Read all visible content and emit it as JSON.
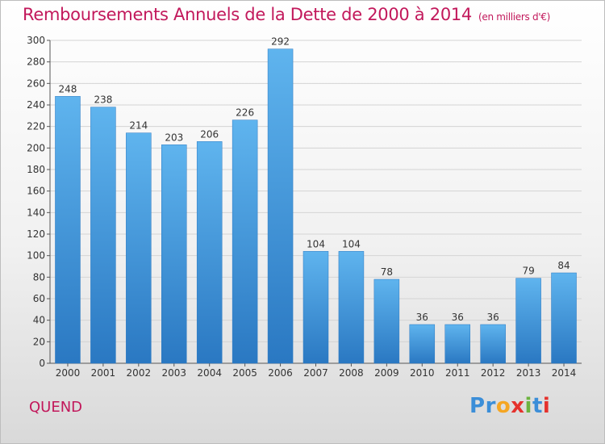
{
  "chart_data": {
    "type": "bar",
    "title": "Remboursements Annuels de la Dette de 2000 à 2014",
    "unit": "(en milliers d'€)",
    "categories": [
      "2000",
      "2001",
      "2002",
      "2003",
      "2004",
      "2005",
      "2006",
      "2007",
      "2008",
      "2009",
      "2010",
      "2011",
      "2012",
      "2013",
      "2014"
    ],
    "values": [
      248,
      238,
      214,
      203,
      206,
      226,
      292,
      104,
      104,
      78,
      36,
      36,
      36,
      79,
      84
    ],
    "ylim": [
      0,
      300
    ],
    "yticks": [
      0,
      20,
      40,
      60,
      80,
      100,
      120,
      140,
      160,
      180,
      200,
      220,
      240,
      260,
      280,
      300
    ],
    "grid": true,
    "bar_color": "#3d9be0"
  },
  "footer": {
    "place": "QUEND",
    "brand_letters": [
      "P",
      "r",
      "o",
      "x",
      "i",
      "t",
      "i"
    ],
    "brand_colors": [
      "#3b8ed8",
      "#3b8ed8",
      "#f5a623",
      "#e5322d",
      "#6cb33f",
      "#3b8ed8",
      "#e5322d"
    ]
  }
}
